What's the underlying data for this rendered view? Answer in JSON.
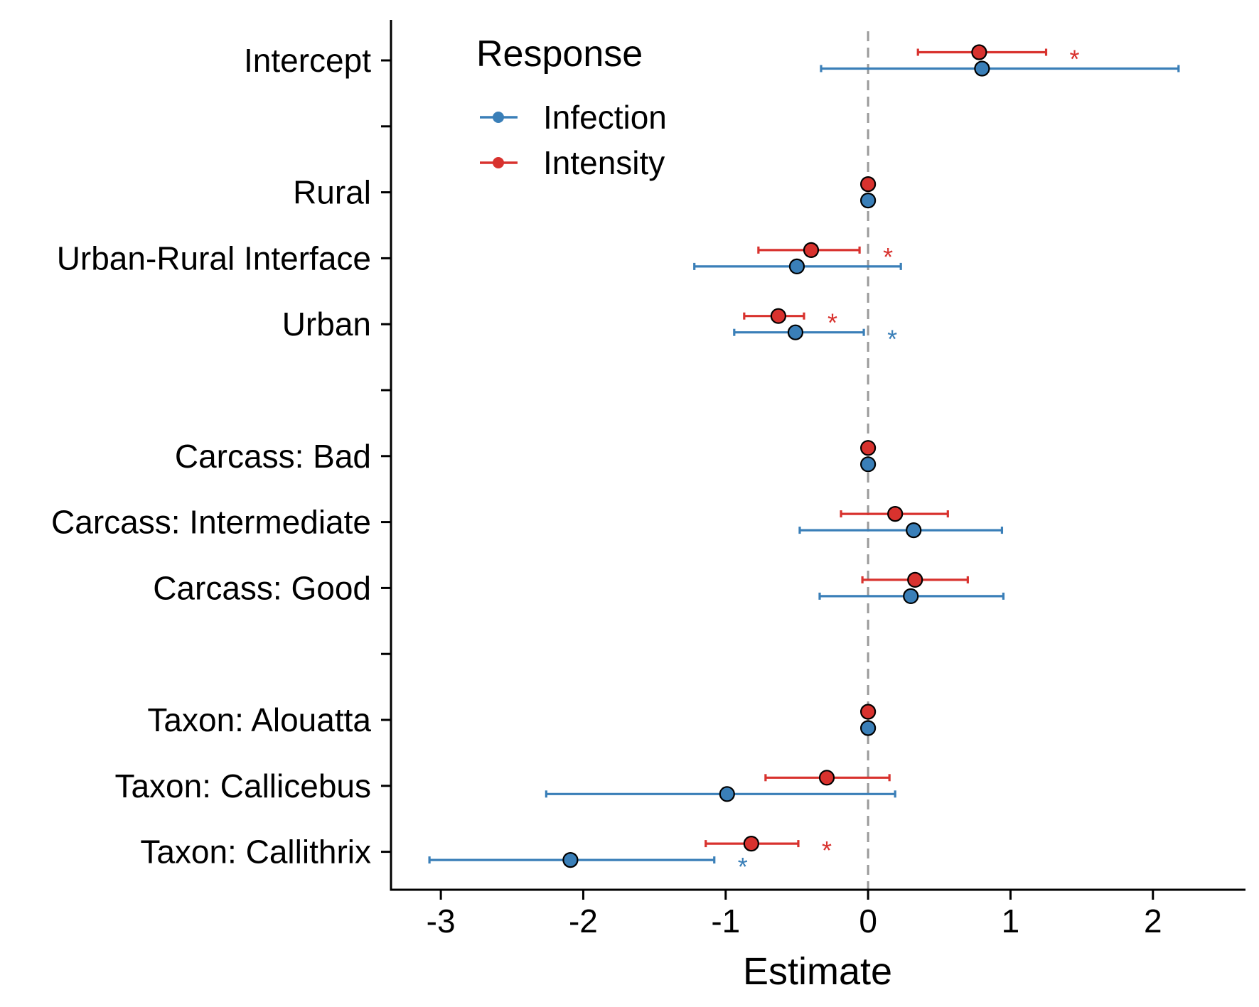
{
  "chart_data": {
    "type": "forest",
    "xlabel": "Estimate",
    "xlim": [
      -3.35,
      2.65
    ],
    "xticks": [
      -3,
      -2,
      -1,
      0,
      1,
      2
    ],
    "reference_line": 0,
    "legend": {
      "title": "Response",
      "placement": "top-left",
      "entries": [
        {
          "name": "Infection",
          "color": "#3a7fb8"
        },
        {
          "name": "Intensity",
          "color": "#d8322e"
        }
      ]
    },
    "rows": [
      {
        "slot": 0,
        "label": "Intercept"
      },
      {
        "slot": 1,
        "label": ""
      },
      {
        "slot": 2,
        "label": "Rural"
      },
      {
        "slot": 3,
        "label": "Urban-Rural Interface"
      },
      {
        "slot": 4,
        "label": "Urban"
      },
      {
        "slot": 5,
        "label": ""
      },
      {
        "slot": 6,
        "label": "Carcass: Bad"
      },
      {
        "slot": 7,
        "label": "Carcass: Intermediate"
      },
      {
        "slot": 8,
        "label": "Carcass: Good"
      },
      {
        "slot": 9,
        "label": ""
      },
      {
        "slot": 10,
        "label": "Taxon: Alouatta"
      },
      {
        "slot": 11,
        "label": "Taxon: Callicebus"
      },
      {
        "slot": 12,
        "label": "Taxon: Callithrix"
      }
    ],
    "series": [
      {
        "name": "Infection",
        "color": "#3a7fb8",
        "points": [
          {
            "slot": 0,
            "estimate": 0.8,
            "lower": -0.33,
            "upper": 2.18,
            "sig": false
          },
          {
            "slot": 2,
            "estimate": 0.0,
            "lower": null,
            "upper": null,
            "sig": false
          },
          {
            "slot": 3,
            "estimate": -0.5,
            "lower": -1.22,
            "upper": 0.23,
            "sig": false
          },
          {
            "slot": 4,
            "estimate": -0.51,
            "lower": -0.94,
            "upper": -0.03,
            "sig": true
          },
          {
            "slot": 6,
            "estimate": 0.0,
            "lower": null,
            "upper": null,
            "sig": false
          },
          {
            "slot": 7,
            "estimate": 0.32,
            "lower": -0.48,
            "upper": 0.94,
            "sig": false
          },
          {
            "slot": 8,
            "estimate": 0.3,
            "lower": -0.34,
            "upper": 0.95,
            "sig": false
          },
          {
            "slot": 10,
            "estimate": 0.0,
            "lower": null,
            "upper": null,
            "sig": false
          },
          {
            "slot": 11,
            "estimate": -0.99,
            "lower": -2.26,
            "upper": 0.19,
            "sig": false
          },
          {
            "slot": 12,
            "estimate": -2.09,
            "lower": -3.08,
            "upper": -1.08,
            "sig": true
          }
        ]
      },
      {
        "name": "Intensity",
        "color": "#d8322e",
        "points": [
          {
            "slot": 0,
            "estimate": 0.78,
            "lower": 0.35,
            "upper": 1.25,
            "sig": true
          },
          {
            "slot": 2,
            "estimate": 0.0,
            "lower": null,
            "upper": null,
            "sig": false
          },
          {
            "slot": 3,
            "estimate": -0.4,
            "lower": -0.77,
            "upper": -0.06,
            "sig": true
          },
          {
            "slot": 4,
            "estimate": -0.63,
            "lower": -0.87,
            "upper": -0.45,
            "sig": true
          },
          {
            "slot": 6,
            "estimate": 0.0,
            "lower": null,
            "upper": null,
            "sig": false
          },
          {
            "slot": 7,
            "estimate": 0.19,
            "lower": -0.19,
            "upper": 0.56,
            "sig": false
          },
          {
            "slot": 8,
            "estimate": 0.33,
            "lower": -0.04,
            "upper": 0.7,
            "sig": false
          },
          {
            "slot": 10,
            "estimate": 0.0,
            "lower": null,
            "upper": null,
            "sig": false
          },
          {
            "slot": 11,
            "estimate": -0.29,
            "lower": -0.72,
            "upper": 0.15,
            "sig": false
          },
          {
            "slot": 12,
            "estimate": -0.82,
            "lower": -1.14,
            "upper": -0.49,
            "sig": true
          }
        ]
      }
    ],
    "significance_marker": "*"
  }
}
